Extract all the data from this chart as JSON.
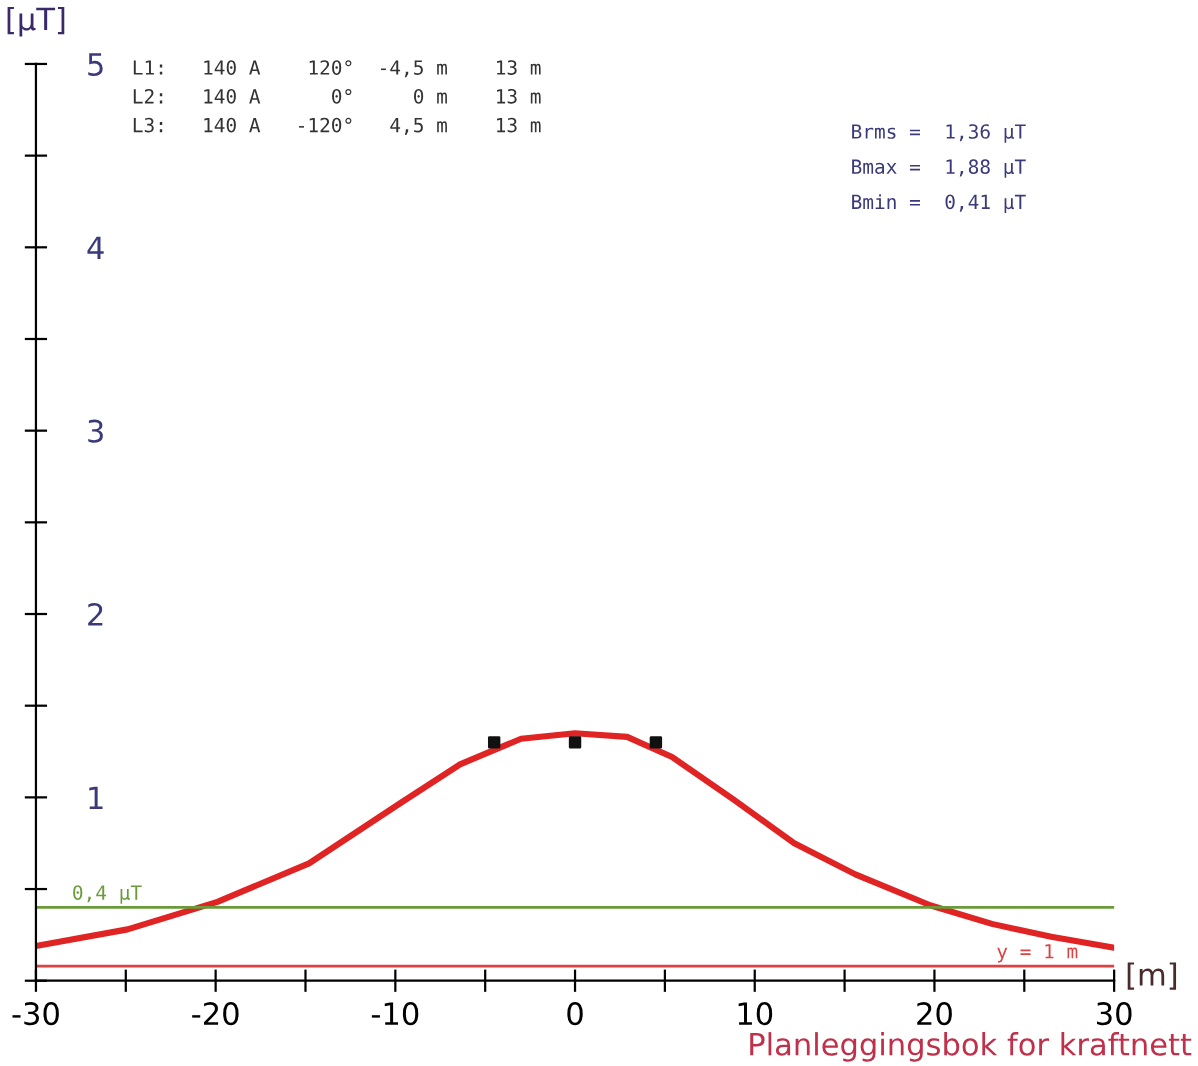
{
  "chart_data": {
    "type": "line",
    "xlabel": "[m]",
    "ylabel": "[µT]",
    "xlim": [
      -30,
      30
    ],
    "ylim": [
      0,
      5
    ],
    "xticks": [
      -30,
      {
        "value": -25,
        "label": null
      },
      -20,
      {
        "value": -15,
        "label": null
      },
      -10,
      {
        "value": -5,
        "label": null
      },
      0,
      {
        "value": 5,
        "label": null
      },
      10,
      {
        "value": 15,
        "label": null
      },
      20,
      {
        "value": 25,
        "label": null
      },
      30
    ],
    "yticks": [
      {
        "value": 0,
        "label": null
      },
      {
        "value": 0.5,
        "label": null
      },
      1,
      {
        "value": 1.5,
        "label": null
      },
      2,
      {
        "value": 2.5,
        "label": null
      },
      3,
      {
        "value": 3.5,
        "label": null
      },
      4,
      {
        "value": 4.5,
        "label": null
      },
      5
    ],
    "grid": false,
    "legend": false,
    "series": [
      {
        "color": "#e02424",
        "marker": "none",
        "line_style": "solid",
        "x": [
          -30,
          -24.9,
          -19.9,
          -14.8,
          -9.7,
          -6.4,
          -3,
          0,
          2.9,
          5.4,
          8.8,
          12.2,
          15.6,
          19.8,
          23.2,
          26.5,
          30
        ],
        "values": [
          0.19,
          0.28,
          0.43,
          0.64,
          0.97,
          1.18,
          1.32,
          1.35,
          1.33,
          1.22,
          0.99,
          0.75,
          0.58,
          0.41,
          0.31,
          0.24,
          0.18
        ]
      },
      {
        "type": "scatter",
        "color": "#111111",
        "marker": "square",
        "x": [
          -4.5,
          0,
          4.5
        ],
        "values": [
          1.3,
          1.3,
          1.3
        ]
      }
    ],
    "ref_lines": [
      {
        "axis": "y",
        "value": 0.4,
        "label": "0,4 µT",
        "color": "#6a9a3a"
      },
      {
        "axis": "y",
        "value": 0.08,
        "color": "#e04040"
      }
    ],
    "annotations": [
      "L1:   140 A    120°  -4,5 m    13 m",
      "L2:   140 A      0°     0 m    13 m",
      "L3:   140 A   -120°   4,5 m    13 m",
      "Brms =  1,36 µT",
      "Bmax =  1,88 µT",
      "Bmin =  0,41 µT",
      "y = 1 m",
      "Planleggingsbok for kraftnett"
    ]
  }
}
